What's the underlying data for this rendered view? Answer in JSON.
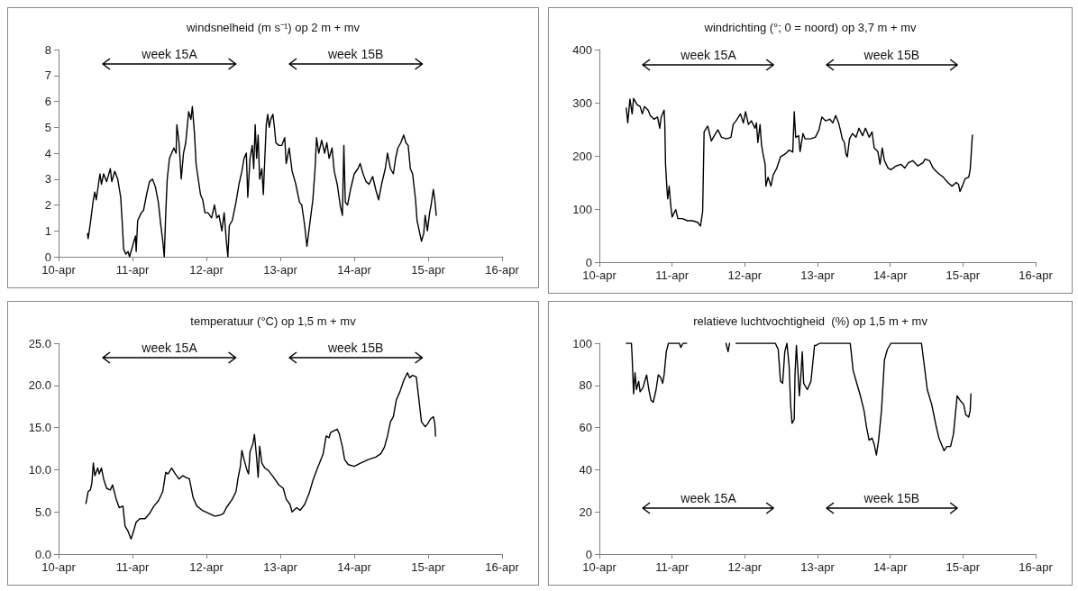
{
  "chart_data": [
    {
      "type": "line",
      "title": "windsnelheid (m s⁻¹) op 2 m + mv",
      "color": "#000000",
      "xlim": [
        "--04-10",
        "--04-16"
      ],
      "xticks": [
        {
          "value": "--04-10",
          "label": "10-apr"
        },
        {
          "value": "--04-11",
          "label": "11-apr"
        },
        {
          "value": "--04-12",
          "label": "12-apr"
        },
        {
          "value": "--04-13",
          "label": "13-apr"
        },
        {
          "value": "--04-14",
          "label": "14-apr"
        },
        {
          "value": "--04-15",
          "label": "15-apr"
        },
        {
          "value": "--04-16",
          "label": "16-apr"
        }
      ],
      "ylim": [
        0,
        8
      ],
      "yticks": [
        0,
        1,
        2,
        3,
        4,
        5,
        6,
        7,
        8
      ],
      "annotations": [
        "week 15A",
        "week 15B"
      ],
      "x": [
        "--04-10T09:22",
        "--04-10T09:36",
        "--04-10T10:19",
        "--04-10T11:17",
        "--04-10T11:46",
        "--04-10T12:14",
        "--04-10T13:26",
        "--04-10T13:55",
        "--04-10T14:38",
        "--04-10T15:36",
        "--04-10T16:48",
        "--04-10T17:17",
        "--04-10T18:14",
        "--04-10T19:12",
        "--04-10T20:10",
        "--04-10T20:38",
        "--04-10T21:07",
        "--04-10T21:50",
        "--04-10T22:34",
        "--04-10T23:02",
        "--04-11T00:00",
        "--04-11T00:58",
        "--04-11T01:12",
        "--04-11T01:41",
        "--04-11T02:53",
        "--04-11T03:36",
        "--04-11T04:34",
        "--04-11T05:31",
        "--04-11T06:29",
        "--04-11T07:26",
        "--04-11T08:24",
        "--04-11T09:07",
        "--04-11T09:50",
        "--04-11T10:19",
        "--04-11T10:48",
        "--04-11T11:17",
        "--04-11T12:00",
        "--04-11T12:43",
        "--04-11T13:26",
        "--04-11T14:10",
        "--04-11T14:24",
        "--04-11T15:07",
        "--04-11T15:50",
        "--04-11T16:34",
        "--04-11T17:17",
        "--04-11T18:14",
        "--04-11T18:58",
        "--04-11T19:26",
        "--04-11T20:10",
        "--04-11T20:38",
        "--04-11T21:07",
        "--04-11T22:05",
        "--04-11T22:48",
        "--04-11T23:31",
        "--04-12T00:29",
        "--04-12T01:41",
        "--04-12T02:38",
        "--04-12T03:22",
        "--04-12T04:05",
        "--04-12T05:02",
        "--04-12T05:46",
        "--04-12T06:29",
        "--04-12T06:58",
        "--04-12T07:26",
        "--04-12T08:24",
        "--04-12T09:36",
        "--04-12T10:34",
        "--04-12T11:31",
        "--04-12T12:14",
        "--04-12T12:58",
        "--04-12T13:26",
        "--04-12T14:10",
        "--04-12T14:53",
        "--04-12T15:22",
        "--04-12T15:50",
        "--04-12T16:19",
        "--04-12T16:48",
        "--04-12T17:17",
        "--04-12T18:00",
        "--04-12T18:29",
        "--04-12T18:58",
        "--04-12T19:26",
        "--04-12T19:55",
        "--04-12T20:24",
        "--04-12T20:53",
        "--04-12T21:36",
        "--04-12T22:05",
        "--04-12T22:34",
        "--04-12T23:31",
        "--04-13T00:29",
        "--04-13T01:26",
        "--04-13T01:55",
        "--04-13T02:53",
        "--04-13T03:50",
        "--04-13T05:02",
        "--04-13T06:14",
        "--04-13T06:58",
        "--04-13T07:55",
        "--04-13T08:38",
        "--04-13T09:36",
        "--04-13T10:34",
        "--04-13T11:17",
        "--04-13T11:46",
        "--04-13T12:29",
        "--04-13T13:26",
        "--04-13T14:24",
        "--04-13T15:07",
        "--04-13T15:50",
        "--04-13T16:48",
        "--04-13T17:31",
        "--04-13T18:29",
        "--04-13T19:26",
        "--04-13T20:10",
        "--04-13T20:38",
        "--04-13T21:07",
        "--04-13T21:50",
        "--04-13T22:48",
        "--04-14T00:00",
        "--04-14T01:12",
        "--04-14T01:55",
        "--04-14T02:53",
        "--04-14T03:50",
        "--04-14T04:48",
        "--04-14T06:00",
        "--04-14T06:58",
        "--04-14T07:55",
        "--04-14T08:53",
        "--04-14T10:05",
        "--04-14T10:48",
        "--04-14T11:46",
        "--04-14T12:43",
        "--04-14T13:26",
        "--04-14T14:10",
        "--04-14T15:07",
        "--04-14T16:05",
        "--04-14T16:48",
        "--04-14T17:31",
        "--04-14T18:14",
        "--04-14T18:58",
        "--04-14T19:55",
        "--04-14T20:24",
        "--04-14T21:07",
        "--04-14T21:50",
        "--04-14T22:34",
        "--04-14T23:02",
        "--04-14T23:46",
        "--04-15T00:29",
        "--04-15T00:58",
        "--04-15T01:41",
        "--04-15T02:10",
        "--04-15T02:38"
      ],
      "values": [
        0.9,
        0.7,
        1.3,
        2.2,
        2.5,
        2.2,
        3.2,
        2.8,
        3.2,
        2.9,
        3.4,
        2.9,
        3.3,
        3.0,
        2.3,
        1.4,
        0.3,
        0.1,
        0.2,
        0,
        0.4,
        0.8,
        0.2,
        1.4,
        1.7,
        1.8,
        2.4,
        2.9,
        3.0,
        2.7,
        2.1,
        1.3,
        0.6,
        0,
        1.7,
        3.0,
        3.8,
        4.0,
        4.2,
        4.0,
        5.1,
        4.4,
        3.0,
        4.0,
        4.4,
        5.6,
        5.3,
        5.8,
        4.7,
        3.6,
        3.2,
        2.4,
        2.2,
        1.7,
        1.7,
        1.5,
        2.0,
        1.5,
        1.6,
        1.0,
        1.7,
        0.6,
        0,
        1.2,
        1.4,
        2.1,
        2.8,
        3.3,
        3.8,
        4.0,
        2.3,
        3.8,
        4.3,
        3.4,
        5.1,
        3.8,
        4.7,
        3.0,
        3.4,
        2.4,
        3.8,
        5.1,
        5.5,
        5.0,
        5.3,
        5.5,
        5.0,
        4.4,
        4.3,
        4.3,
        4.6,
        3.6,
        4.2,
        3.3,
        2.8,
        2.1,
        2.0,
        1.2,
        0.4,
        1.3,
        2.2,
        3.4,
        4.6,
        4.0,
        4.5,
        4.0,
        4.4,
        3.8,
        4.2,
        3.3,
        2.8,
        2.0,
        1.6,
        4.3,
        2.1,
        2.0,
        2.6,
        3.2,
        3.4,
        3.6,
        3.2,
        2.9,
        2.8,
        3.1,
        2.6,
        2.2,
        2.8,
        3.4,
        4.0,
        3.4,
        3.2,
        3.8,
        4.2,
        4.4,
        4.7,
        4.4,
        4.3,
        3.4,
        3.2,
        2.2,
        1.4,
        1.0,
        0.6,
        0.9,
        1.6,
        1.0,
        1.7,
        2.0,
        2.6,
        2.2,
        1.6
      ]
    },
    {
      "type": "line",
      "title": "windrichting (°; 0 = noord) op 3,7 m + mv",
      "color": "#000000",
      "xlim": [
        "--04-10",
        "--04-16"
      ],
      "xticks": [
        {
          "value": "--04-10",
          "label": "10-apr"
        },
        {
          "value": "--04-11",
          "label": "11-apr"
        },
        {
          "value": "--04-12",
          "label": "12-apr"
        },
        {
          "value": "--04-13",
          "label": "13-apr"
        },
        {
          "value": "--04-14",
          "label": "14-apr"
        },
        {
          "value": "--04-15",
          "label": "15-apr"
        },
        {
          "value": "--04-16",
          "label": "16-apr"
        }
      ],
      "ylim": [
        0,
        400
      ],
      "yticks": [
        0,
        100,
        200,
        300,
        400
      ],
      "annotations": [
        "week 15A",
        "week 15B"
      ],
      "x": [
        "--04-10T08:53",
        "--04-10T09:22",
        "--04-10T10:05",
        "--04-10T10:48",
        "--04-10T11:17",
        "--04-10T12:29",
        "--04-10T13:26",
        "--04-10T14:10",
        "--04-10T14:53",
        "--04-10T16:05",
        "--04-10T16:48",
        "--04-10T18:00",
        "--04-10T19:12",
        "--04-10T19:55",
        "--04-10T20:24",
        "--04-10T21:22",
        "--04-10T21:36",
        "--04-10T21:50",
        "--04-10T22:19",
        "--04-10T22:34",
        "--04-10T23:02",
        "--04-10T23:31",
        "--04-11T00:00",
        "--04-11T01:12",
        "--04-11T01:55",
        "--04-11T03:22",
        "--04-11T05:02",
        "--04-11T06:43",
        "--04-11T08:24",
        "--04-11T09:22",
        "--04-11T10:05",
        "--04-11T10:34",
        "--04-11T11:17",
        "--04-11T11:46",
        "--04-11T12:58",
        "--04-11T13:55",
        "--04-11T15:07",
        "--04-11T16:19",
        "--04-11T18:00",
        "--04-11T19:26",
        "--04-11T20:10",
        "--04-11T21:07",
        "--04-11T22:34",
        "--04-11T23:31",
        "--04-12T00:14",
        "--04-12T01:12",
        "--04-12T02:10",
        "--04-12T03:22",
        "--04-12T03:50",
        "--04-12T04:19",
        "--04-12T05:02",
        "--04-12T05:31",
        "--04-12T06:00",
        "--04-12T06:43",
        "--04-12T06:58",
        "--04-12T07:41",
        "--04-12T08:38",
        "--04-12T09:22",
        "--04-12T10:34",
        "--04-12T11:46",
        "--04-12T13:26",
        "--04-12T14:38",
        "--04-12T15:50",
        "--04-12T16:19",
        "--04-12T16:48",
        "--04-12T17:46",
        "--04-12T18:14",
        "--04-12T19:12",
        "--04-12T19:55",
        "--04-12T21:36",
        "--04-12T23:17",
        "--04-13T00:29",
        "--04-13T01:26",
        "--04-13T02:38",
        "--04-13T04:05",
        "--04-13T05:02",
        "--04-13T06:00",
        "--04-13T06:58",
        "--04-13T07:41",
        "--04-13T08:10",
        "--04-13T08:53",
        "--04-13T09:22",
        "--04-13T09:50",
        "--04-13T10:34",
        "--04-13T11:31",
        "--04-13T12:43",
        "--04-13T13:41",
        "--04-13T14:53",
        "--04-13T15:50",
        "--04-13T17:02",
        "--04-13T18:00",
        "--04-13T18:43",
        "--04-13T19:55",
        "--04-13T20:38",
        "--04-13T21:22",
        "--04-13T22:05",
        "--04-13T23:17",
        "--04-14T00:14",
        "--04-14T01:55",
        "--04-14T03:36",
        "--04-14T04:48",
        "--04-14T06:00",
        "--04-14T07:26",
        "--04-14T09:07",
        "--04-14T10:48",
        "--04-14T11:31",
        "--04-14T12:58",
        "--04-14T14:10",
        "--04-14T15:22",
        "--04-14T16:34",
        "--04-14T17:31",
        "--04-14T18:58",
        "--04-14T20:24",
        "--04-14T21:50",
        "--04-14T22:34",
        "--04-14T23:02",
        "--04-15T00:00",
        "--04-15T00:43",
        "--04-15T01:55",
        "--04-15T02:24",
        "--04-15T03:07"
      ],
      "values": [
        290,
        262,
        307,
        279,
        308,
        296,
        293,
        279,
        293,
        286,
        276,
        269,
        273,
        252,
        273,
        286,
        259,
        184,
        136,
        119,
        143,
        109,
        85,
        99,
        82,
        82,
        78,
        78,
        75,
        68,
        95,
        245,
        252,
        256,
        228,
        238,
        249,
        235,
        232,
        235,
        259,
        266,
        279,
        262,
        283,
        259,
        266,
        252,
        262,
        225,
        259,
        221,
        204,
        184,
        143,
        160,
        143,
        164,
        177,
        198,
        204,
        211,
        207,
        283,
        235,
        238,
        208,
        242,
        232,
        232,
        235,
        249,
        273,
        266,
        269,
        262,
        276,
        262,
        245,
        232,
        225,
        204,
        198,
        232,
        242,
        235,
        252,
        238,
        252,
        235,
        245,
        215,
        208,
        184,
        215,
        191,
        177,
        174,
        181,
        184,
        177,
        187,
        191,
        181,
        187,
        194,
        191,
        177,
        170,
        164,
        160,
        150,
        143,
        150,
        146,
        133,
        146,
        157,
        160,
        174,
        239
      ]
    },
    {
      "type": "line",
      "title": "temperatuur (°C) op 1,5 m + mv",
      "color": "#000000",
      "xlim": [
        "--04-10",
        "--04-16"
      ],
      "xticks": [
        {
          "value": "--04-10",
          "label": "10-apr"
        },
        {
          "value": "--04-11",
          "label": "11-apr"
        },
        {
          "value": "--04-12",
          "label": "12-apr"
        },
        {
          "value": "--04-13",
          "label": "13-apr"
        },
        {
          "value": "--04-14",
          "label": "14-apr"
        },
        {
          "value": "--04-15",
          "label": "15-apr"
        },
        {
          "value": "--04-16",
          "label": "16-apr"
        }
      ],
      "ylim": [
        0,
        25
      ],
      "yticks": [
        {
          "value": 0,
          "label": "0.0"
        },
        {
          "value": 5,
          "label": "5.0"
        },
        {
          "value": 10,
          "label": "10.0"
        },
        {
          "value": 15,
          "label": "15.0"
        },
        {
          "value": 20,
          "label": "20.0"
        },
        {
          "value": 25,
          "label": "25.0"
        }
      ],
      "annotations": [
        "week 15A",
        "week 15B"
      ],
      "x": [
        "--04-10T08:53",
        "--04-10T09:36",
        "--04-10T10:19",
        "--04-10T10:48",
        "--04-10T11:17",
        "--04-10T11:46",
        "--04-10T12:43",
        "--04-10T13:12",
        "--04-10T13:55",
        "--04-10T14:38",
        "--04-10T15:36",
        "--04-10T16:48",
        "--04-10T17:31",
        "--04-10T18:43",
        "--04-10T19:41",
        "--04-10T20:53",
        "--04-10T21:36",
        "--04-10T22:34",
        "--04-10T23:31",
        "--04-11T00:00",
        "--04-11T01:12",
        "--04-11T02:24",
        "--04-11T04:05",
        "--04-11T05:31",
        "--04-11T06:58",
        "--04-11T08:24",
        "--04-11T09:50",
        "--04-11T10:48",
        "--04-11T11:31",
        "--04-11T12:43",
        "--04-11T13:55",
        "--04-11T15:07",
        "--04-11T16:19",
        "--04-11T17:17",
        "--04-11T18:29",
        "--04-11T19:41",
        "--04-11T20:53",
        "--04-11T22:34",
        "--04-12T00:58",
        "--04-12T02:38",
        "--04-12T04:19",
        "--04-12T05:31",
        "--04-12T06:29",
        "--04-12T08:24",
        "--04-12T09:36",
        "--04-12T10:19",
        "--04-12T11:02",
        "--04-12T11:31",
        "--04-12T12:14",
        "--04-12T13:12",
        "--04-12T13:41",
        "--04-12T14:10",
        "--04-12T15:07",
        "--04-12T15:36",
        "--04-12T16:19",
        "--04-12T16:48",
        "--04-12T17:17",
        "--04-12T18:00",
        "--04-12T18:58",
        "--04-12T20:10",
        "--04-12T21:50",
        "--04-12T23:31",
        "--04-13T00:58",
        "--04-13T01:55",
        "--04-13T03:07",
        "--04-13T03:50",
        "--04-13T05:17",
        "--04-13T06:29",
        "--04-13T07:55",
        "--04-13T09:22",
        "--04-13T10:34",
        "--04-13T11:46",
        "--04-13T12:58",
        "--04-13T13:55",
        "--04-13T14:53",
        "--04-13T15:50",
        "--04-13T16:19",
        "--04-13T17:17",
        "--04-13T18:29",
        "--04-13T19:12",
        "--04-13T20:10",
        "--04-13T20:53",
        "--04-13T22:05",
        "--04-14T00:00",
        "--04-14T02:10",
        "--04-14T04:34",
        "--04-14T06:58",
        "--04-14T08:38",
        "--04-14T09:50",
        "--04-14T10:48",
        "--04-14T11:46",
        "--04-14T12:43",
        "--04-14T13:41",
        "--04-14T14:53",
        "--04-14T16:05",
        "--04-14T17:17",
        "--04-14T18:00",
        "--04-14T18:58",
        "--04-14T20:10",
        "--04-14T20:53",
        "--04-14T21:50",
        "--04-14T23:02",
        "--04-14T23:46",
        "--04-15T00:43",
        "--04-15T01:41",
        "--04-15T02:10",
        "--04-15T02:24"
      ],
      "values": [
        6.0,
        7.4,
        7.6,
        8.4,
        10.8,
        9.3,
        10.2,
        9.5,
        10.2,
        8.9,
        7.8,
        7.6,
        8.2,
        6.5,
        5.5,
        5.7,
        3.3,
        2.7,
        1.8,
        2.3,
        3.8,
        4.2,
        4.2,
        4.8,
        5.7,
        6.3,
        7.4,
        9.7,
        9.5,
        10.2,
        9.5,
        8.9,
        9.3,
        9.1,
        8.9,
        6.7,
        5.7,
        5.2,
        4.8,
        4.5,
        4.6,
        4.8,
        5.5,
        6.5,
        7.4,
        9.1,
        10.4,
        12.3,
        11.2,
        9.9,
        9.5,
        12.1,
        13.1,
        14.2,
        11.4,
        9.1,
        12.8,
        10.8,
        10.2,
        9.9,
        9.1,
        8.2,
        7.8,
        6.5,
        5.9,
        5.0,
        5.5,
        5.2,
        5.9,
        7.2,
        8.7,
        9.9,
        11.0,
        11.9,
        14.0,
        13.8,
        14.4,
        14.6,
        14.8,
        14.2,
        12.7,
        11.2,
        10.6,
        10.4,
        10.8,
        11.2,
        11.5,
        11.9,
        12.7,
        14.0,
        15.7,
        16.3,
        18.3,
        19.3,
        20.6,
        21.5,
        20.9,
        21.2,
        21.0,
        18.7,
        15.7,
        15.1,
        15.4,
        16.0,
        16.3,
        15.5,
        14.0
      ]
    },
    {
      "type": "line",
      "title": "relatieve luchtvochtigheid  (%) op 1,5 m + mv",
      "color": "#000000",
      "xlim": [
        "--04-10",
        "--04-16"
      ],
      "xticks": [
        {
          "value": "--04-10",
          "label": "10-apr"
        },
        {
          "value": "--04-11",
          "label": "11-apr"
        },
        {
          "value": "--04-12",
          "label": "12-apr"
        },
        {
          "value": "--04-13",
          "label": "13-apr"
        },
        {
          "value": "--04-14",
          "label": "14-apr"
        },
        {
          "value": "--04-15",
          "label": "15-apr"
        },
        {
          "value": "--04-16",
          "label": "16-apr"
        }
      ],
      "ylim": [
        0,
        100
      ],
      "yticks": [
        0,
        20,
        40,
        60,
        80,
        100
      ],
      "annotations": [
        "week 15A",
        "week 15B"
      ],
      "x": [
        "--04-10T08:53",
        "--04-10T10:34",
        "--04-10T10:48",
        "--04-10T11:17",
        "--04-10T11:46",
        "--04-10T12:14",
        "--04-10T12:58",
        "--04-10T13:26",
        "--04-10T14:24",
        "--04-10T15:22",
        "--04-10T15:36",
        "--04-10T16:19",
        "--04-10T17:02",
        "--04-10T17:46",
        "--04-10T18:43",
        "--04-10T19:26",
        "--04-10T20:10",
        "--04-10T20:53",
        "--04-10T21:22",
        "--04-10T22:05",
        "--04-10T22:48",
        "--04-11T00:58",
        "--04-11T02:24",
        "--04-11T02:53",
        "--04-11T03:36",
        "--04-11T04:48",
        "--04-11T12:00",
        "--04-11T17:46",
        "--04-11T18:29",
        "--04-11T18:58",
        "--04-11T20:10",
        "--04-11T21:07",
        "--04-12T10:05",
        "--04-12T11:02",
        "--04-12T11:46",
        "--04-12T12:29",
        "--04-12T13:12",
        "--04-12T13:55",
        "--04-12T14:38",
        "--04-12T15:07",
        "--04-12T15:36",
        "--04-12T16:19",
        "--04-12T16:34",
        "--04-12T17:02",
        "--04-12T18:00",
        "--04-12T18:29",
        "--04-12T18:58",
        "--04-12T19:26",
        "--04-12T20:38",
        "--04-12T21:50",
        "--04-12T23:02",
        "--04-12T23:31",
        "--04-13T00:43",
        "--04-13T10:48",
        "--04-13T11:46",
        "--04-13T12:58",
        "--04-13T14:10",
        "--04-13T15:22",
        "--04-13T16:05",
        "--04-13T17:02",
        "--04-13T18:00",
        "--04-13T18:43",
        "--04-13T19:26",
        "--04-13T20:10",
        "--04-13T21:07",
        "--04-13T22:05",
        "--04-13T23:02",
        "--04-14T00:14",
        "--04-14T10:19",
        "--04-14T11:17",
        "--04-14T12:14",
        "--04-14T13:41",
        "--04-14T15:07",
        "--04-14T16:05",
        "--04-14T17:46",
        "--04-14T18:43",
        "--04-14T19:55",
        "--04-14T20:53",
        "--04-14T22:05",
        "--04-14T23:02",
        "--04-15T00:14",
        "--04-15T00:58",
        "--04-15T01:55",
        "--04-15T02:24",
        "--04-15T02:38"
      ],
      "values": [
        100,
        100,
        94,
        76,
        86,
        78,
        82,
        77,
        79,
        84,
        85,
        78,
        73,
        72,
        78,
        85,
        84,
        81,
        85,
        96,
        100,
        100,
        100,
        98,
        100,
        100,
        null,
        100,
        96,
        100,
        null,
        100,
        100,
        97,
        82,
        81,
        96,
        100,
        89,
        71,
        62,
        64,
        85,
        99,
        75,
        84,
        96,
        81,
        78,
        82,
        99,
        99,
        100,
        100,
        87,
        81,
        75,
        68,
        61,
        54,
        55,
        52,
        47,
        54,
        68,
        92,
        97,
        100,
        100,
        89,
        78,
        71,
        61,
        55,
        49,
        51,
        51,
        57,
        75,
        73,
        71,
        66,
        65,
        68,
        76
      ]
    }
  ]
}
